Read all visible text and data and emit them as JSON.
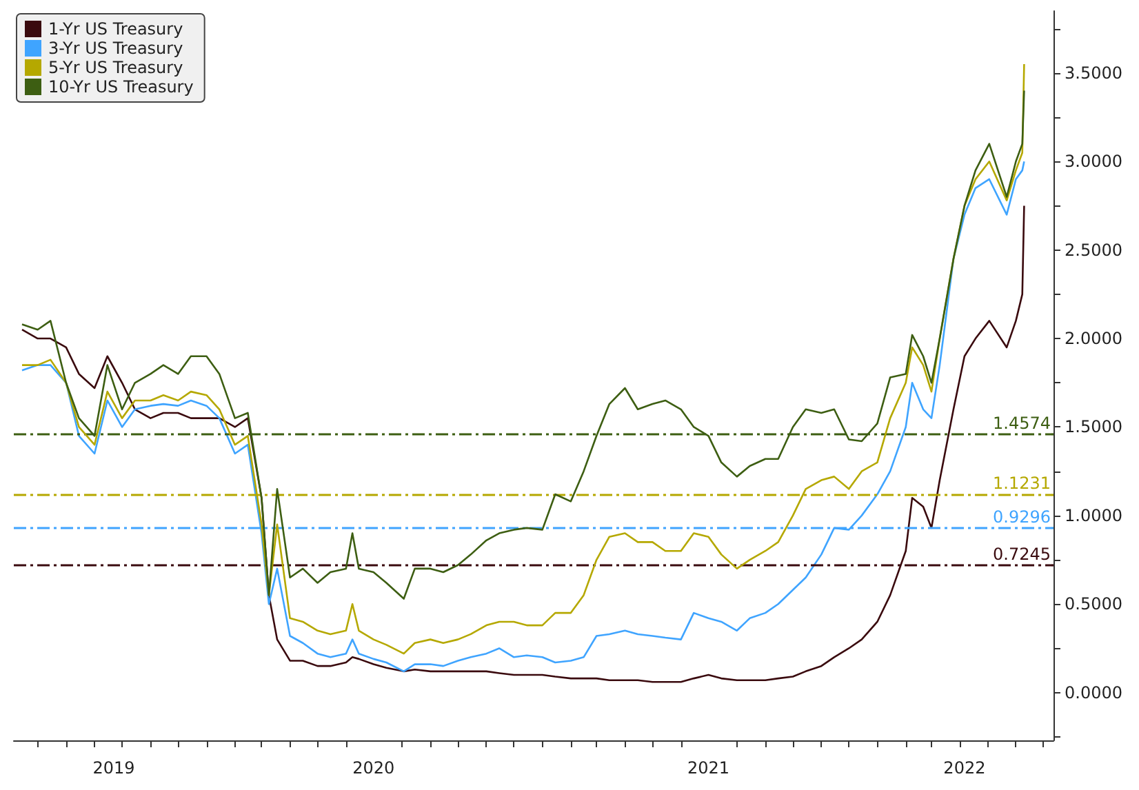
{
  "chart_data": {
    "type": "line",
    "x": [
      "2019-06-14",
      "2019-07-01",
      "2019-07-15",
      "2019-08-01",
      "2019-08-15",
      "2019-09-01",
      "2019-09-15",
      "2019-10-01",
      "2019-10-15",
      "2019-11-01",
      "2019-11-15",
      "2019-12-01",
      "2019-12-15",
      "2020-01-01",
      "2020-01-15",
      "2020-02-01",
      "2020-02-15",
      "2020-03-01",
      "2020-03-09",
      "2020-03-18",
      "2020-04-01",
      "2020-04-15",
      "2020-05-01",
      "2020-05-15",
      "2020-06-01",
      "2020-06-08",
      "2020-06-15",
      "2020-07-01",
      "2020-07-15",
      "2020-08-03",
      "2020-08-15",
      "2020-09-01",
      "2020-09-15",
      "2020-10-01",
      "2020-10-15",
      "2020-11-01",
      "2020-11-15",
      "2020-12-01",
      "2020-12-15",
      "2021-01-01",
      "2021-01-15",
      "2021-02-01",
      "2021-02-15",
      "2021-03-01",
      "2021-03-15",
      "2021-04-01",
      "2021-04-15",
      "2021-05-01",
      "2021-05-15",
      "2021-06-01",
      "2021-06-15",
      "2021-07-01",
      "2021-07-15",
      "2021-08-01",
      "2021-08-15",
      "2021-09-01",
      "2021-09-15",
      "2021-10-01",
      "2021-10-15",
      "2021-11-01",
      "2021-11-15",
      "2021-12-01",
      "2021-12-15",
      "2022-01-01",
      "2022-01-15",
      "2022-02-01",
      "2022-02-08",
      "2022-02-20",
      "2022-03-01",
      "2022-03-10",
      "2022-03-25",
      "2022-04-06",
      "2022-04-18",
      "2022-05-03",
      "2022-05-22",
      "2022-06-01",
      "2022-06-08",
      "2022-06-10"
    ],
    "series": [
      {
        "name": "1-Yr US Treasury",
        "color": "#3a0a0e",
        "values": [
          2.05,
          2.0,
          2.0,
          1.95,
          1.8,
          1.72,
          1.9,
          1.75,
          1.6,
          1.55,
          1.58,
          1.58,
          1.55,
          1.55,
          1.55,
          1.5,
          1.55,
          1.1,
          0.55,
          0.3,
          0.18,
          0.18,
          0.15,
          0.15,
          0.17,
          0.2,
          0.19,
          0.16,
          0.14,
          0.12,
          0.13,
          0.12,
          0.12,
          0.12,
          0.12,
          0.12,
          0.11,
          0.1,
          0.1,
          0.1,
          0.09,
          0.08,
          0.08,
          0.08,
          0.07,
          0.07,
          0.07,
          0.06,
          0.06,
          0.06,
          0.08,
          0.1,
          0.08,
          0.07,
          0.07,
          0.07,
          0.08,
          0.09,
          0.12,
          0.15,
          0.2,
          0.25,
          0.3,
          0.4,
          0.55,
          0.8,
          1.1,
          1.05,
          0.93,
          1.2,
          1.6,
          1.9,
          2.0,
          2.1,
          1.95,
          2.1,
          2.25,
          2.75
        ]
      },
      {
        "name": "3-Yr US Treasury",
        "color": "#3fa4ff",
        "values": [
          1.82,
          1.85,
          1.85,
          1.75,
          1.45,
          1.35,
          1.65,
          1.5,
          1.6,
          1.62,
          1.63,
          1.62,
          1.65,
          1.62,
          1.55,
          1.35,
          1.4,
          0.9,
          0.5,
          0.7,
          0.32,
          0.28,
          0.22,
          0.2,
          0.22,
          0.3,
          0.22,
          0.19,
          0.17,
          0.12,
          0.16,
          0.16,
          0.15,
          0.18,
          0.2,
          0.22,
          0.25,
          0.2,
          0.21,
          0.2,
          0.17,
          0.18,
          0.2,
          0.32,
          0.33,
          0.35,
          0.33,
          0.32,
          0.31,
          0.3,
          0.45,
          0.42,
          0.4,
          0.35,
          0.42,
          0.45,
          0.5,
          0.58,
          0.65,
          0.78,
          0.93,
          0.92,
          1.0,
          1.12,
          1.25,
          1.5,
          1.75,
          1.6,
          1.55,
          1.85,
          2.45,
          2.7,
          2.85,
          2.9,
          2.7,
          2.9,
          2.95,
          3.0
        ]
      },
      {
        "name": "5-Yr US Treasury",
        "color": "#b5a800",
        "values": [
          1.85,
          1.85,
          1.88,
          1.75,
          1.5,
          1.4,
          1.7,
          1.55,
          1.65,
          1.65,
          1.68,
          1.65,
          1.7,
          1.68,
          1.6,
          1.4,
          1.45,
          0.95,
          0.55,
          0.95,
          0.42,
          0.4,
          0.35,
          0.33,
          0.35,
          0.5,
          0.35,
          0.3,
          0.27,
          0.22,
          0.28,
          0.3,
          0.28,
          0.3,
          0.33,
          0.38,
          0.4,
          0.4,
          0.38,
          0.38,
          0.45,
          0.45,
          0.55,
          0.75,
          0.88,
          0.9,
          0.85,
          0.85,
          0.8,
          0.8,
          0.9,
          0.88,
          0.78,
          0.7,
          0.75,
          0.8,
          0.85,
          1.0,
          1.15,
          1.2,
          1.22,
          1.15,
          1.25,
          1.3,
          1.55,
          1.75,
          1.95,
          1.85,
          1.7,
          2.0,
          2.45,
          2.75,
          2.9,
          3.0,
          2.78,
          2.95,
          3.05,
          3.55
        ]
      },
      {
        "name": "10-Yr US Treasury",
        "color": "#3d5e12",
        "values": [
          2.08,
          2.05,
          2.1,
          1.75,
          1.55,
          1.45,
          1.85,
          1.6,
          1.75,
          1.8,
          1.85,
          1.8,
          1.9,
          1.9,
          1.8,
          1.55,
          1.58,
          1.1,
          0.55,
          1.15,
          0.65,
          0.7,
          0.62,
          0.68,
          0.7,
          0.9,
          0.7,
          0.68,
          0.62,
          0.53,
          0.7,
          0.7,
          0.68,
          0.72,
          0.78,
          0.86,
          0.9,
          0.92,
          0.93,
          0.92,
          1.12,
          1.08,
          1.25,
          1.45,
          1.63,
          1.72,
          1.6,
          1.63,
          1.65,
          1.6,
          1.5,
          1.45,
          1.3,
          1.22,
          1.28,
          1.32,
          1.32,
          1.5,
          1.6,
          1.58,
          1.6,
          1.43,
          1.42,
          1.52,
          1.78,
          1.8,
          2.02,
          1.9,
          1.75,
          2.0,
          2.45,
          2.75,
          2.95,
          3.1,
          2.8,
          3.0,
          3.1,
          3.4
        ]
      }
    ],
    "xlim": [
      "2019-06-05",
      "2022-07-12"
    ],
    "xticks": [
      {
        "value": "2019-07-01",
        "label": null
      },
      {
        "value": "2019-08-01",
        "label": null
      },
      {
        "value": "2019-09-01",
        "label": null
      },
      {
        "value": "2019-09-22",
        "label": "2019"
      },
      {
        "value": "2019-10-01",
        "label": null
      },
      {
        "value": "2019-11-01",
        "label": null
      },
      {
        "value": "2019-12-01",
        "label": null
      },
      {
        "value": "2020-01-01",
        "label": null
      },
      {
        "value": "2020-02-01",
        "label": null
      },
      {
        "value": "2020-03-01",
        "label": null
      },
      {
        "value": "2020-04-01",
        "label": null
      },
      {
        "value": "2020-05-01",
        "label": null
      },
      {
        "value": "2020-06-01",
        "label": null
      },
      {
        "value": "2020-07-01",
        "label": "2020"
      },
      {
        "value": "2020-08-01",
        "label": null
      },
      {
        "value": "2020-09-01",
        "label": null
      },
      {
        "value": "2020-10-01",
        "label": null
      },
      {
        "value": "2020-11-01",
        "label": null
      },
      {
        "value": "2020-12-01",
        "label": null
      },
      {
        "value": "2021-01-01",
        "label": null
      },
      {
        "value": "2021-02-01",
        "label": null
      },
      {
        "value": "2021-03-01",
        "label": null
      },
      {
        "value": "2021-04-01",
        "label": null
      },
      {
        "value": "2021-05-01",
        "label": null
      },
      {
        "value": "2021-06-01",
        "label": null
      },
      {
        "value": "2021-07-01",
        "label": "2021"
      },
      {
        "value": "2021-08-01",
        "label": null
      },
      {
        "value": "2021-09-01",
        "label": null
      },
      {
        "value": "2021-10-01",
        "label": null
      },
      {
        "value": "2021-11-01",
        "label": null
      },
      {
        "value": "2021-12-01",
        "label": null
      },
      {
        "value": "2022-01-01",
        "label": null
      },
      {
        "value": "2022-02-01",
        "label": null
      },
      {
        "value": "2022-03-01",
        "label": null
      },
      {
        "value": "2022-04-01",
        "label": null
      },
      {
        "value": "2022-04-06",
        "label": "2022"
      },
      {
        "value": "2022-05-01",
        "label": null
      },
      {
        "value": "2022-06-01",
        "label": null
      },
      {
        "value": "2022-07-01",
        "label": null
      }
    ],
    "ylim": [
      -0.27,
      3.85
    ],
    "yticks": [
      {
        "value": -0.25,
        "label": null
      },
      {
        "value": 0,
        "label": "0.0000"
      },
      {
        "value": 0.25,
        "label": null
      },
      {
        "value": 0.5,
        "label": "0.5000"
      },
      {
        "value": 0.75,
        "label": null
      },
      {
        "value": 1,
        "label": "1.0000"
      },
      {
        "value": 1.25,
        "label": null
      },
      {
        "value": 1.5,
        "label": "1.5000"
      },
      {
        "value": 1.75,
        "label": null
      },
      {
        "value": 2,
        "label": "2.0000"
      },
      {
        "value": 2.25,
        "label": null
      },
      {
        "value": 2.5,
        "label": "2.5000"
      },
      {
        "value": 2.75,
        "label": null
      },
      {
        "value": 3,
        "label": "3.0000"
      },
      {
        "value": 3.25,
        "label": null
      },
      {
        "value": 3.5,
        "label": "3.5000"
      },
      {
        "value": 3.75,
        "label": null
      }
    ],
    "ref_lines": [
      {
        "axis": "y",
        "value": 1.4574,
        "label": "1.4574",
        "color": "#3d5e12",
        "line_style": "dashed"
      },
      {
        "axis": "y",
        "value": 1.1231,
        "label": "1.1231",
        "color": "#b5a800",
        "line_style": "dashed"
      },
      {
        "axis": "y",
        "value": 0.9296,
        "label": "0.9296",
        "color": "#3fa4ff",
        "line_style": "dashed"
      },
      {
        "axis": "y",
        "value": 0.7245,
        "label": "0.7245",
        "color": "#3a0a0e",
        "line_style": "dashed"
      }
    ],
    "grid": false,
    "legend": "top left"
  }
}
